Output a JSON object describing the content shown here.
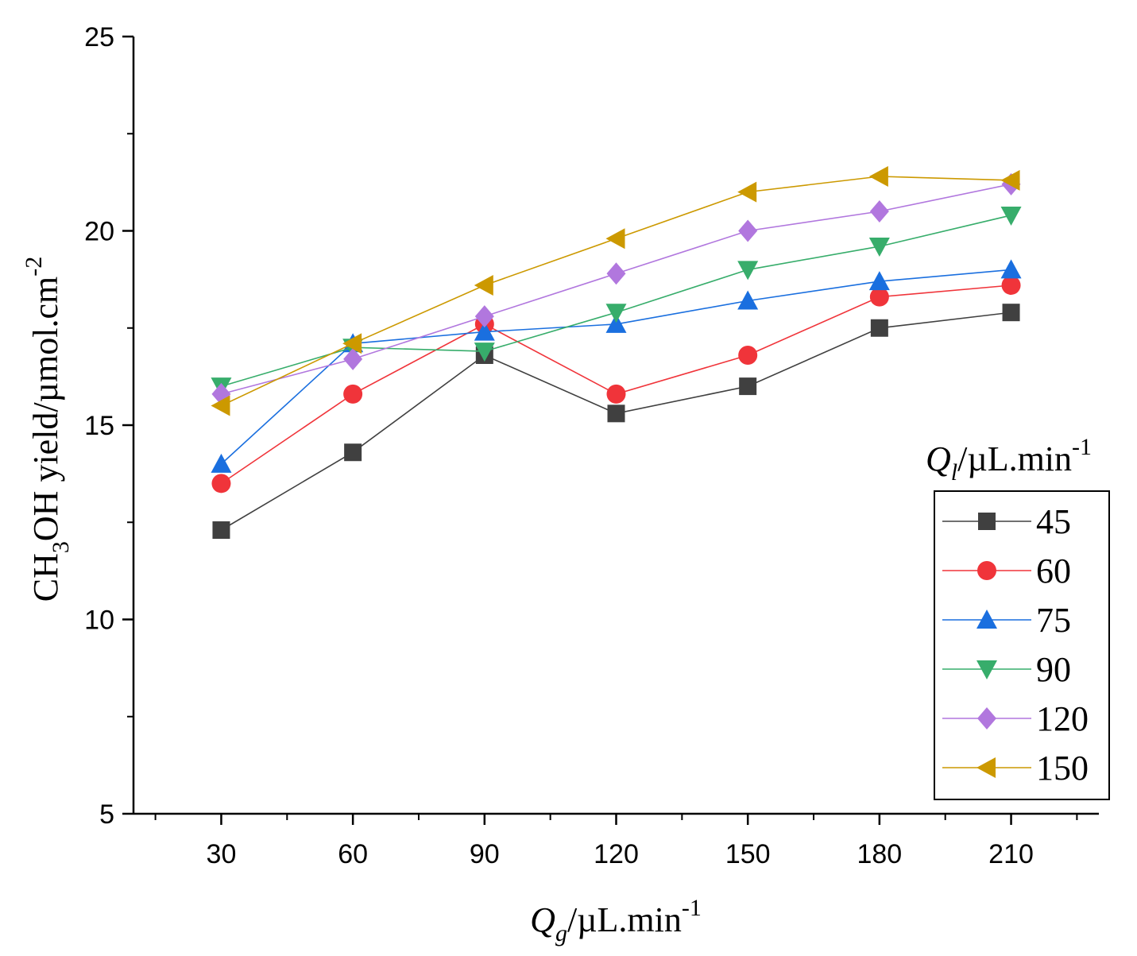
{
  "chart_data": {
    "type": "line",
    "x": [
      30,
      60,
      90,
      120,
      150,
      180,
      210
    ],
    "xlim": [
      10,
      230
    ],
    "ylim": [
      5,
      25
    ],
    "xticks": [
      "30",
      "60",
      "90",
      "120",
      "150",
      "180",
      "210"
    ],
    "yticks": [
      "5",
      "10",
      "15",
      "20",
      "25"
    ],
    "xlabel": {
      "var": "Q",
      "sub": "g",
      "unit": "/µL.min",
      "sup": "-1"
    },
    "ylabel": {
      "pre": "CH",
      "sub": "3",
      "mid": "OH yield/µmol.cm",
      "sup": "-2"
    },
    "legend_title": {
      "var": "Q",
      "sub": "l",
      "unit": "/µL.min",
      "sup": "-1"
    },
    "legend_position": "right",
    "grid": false,
    "series": [
      {
        "name": "45",
        "color": "#404040",
        "marker": "square",
        "values": [
          12.3,
          14.3,
          16.8,
          15.3,
          16.0,
          17.5,
          17.9
        ]
      },
      {
        "name": "60",
        "color": "#f0343a",
        "marker": "circle",
        "values": [
          13.5,
          15.8,
          17.6,
          15.8,
          16.8,
          18.3,
          18.6
        ]
      },
      {
        "name": "75",
        "color": "#1a6fdf",
        "marker": "triangle-up",
        "values": [
          14.0,
          17.1,
          17.4,
          17.6,
          18.2,
          18.7,
          19.0
        ]
      },
      {
        "name": "90",
        "color": "#37ad6b",
        "marker": "triangle-down",
        "values": [
          16.0,
          17.0,
          16.9,
          17.9,
          19.0,
          19.6,
          20.4
        ]
      },
      {
        "name": "120",
        "color": "#b177de",
        "marker": "diamond",
        "values": [
          15.8,
          16.7,
          17.8,
          18.9,
          20.0,
          20.5,
          21.2
        ]
      },
      {
        "name": "150",
        "color": "#cc9900",
        "marker": "triangle-left",
        "values": [
          15.5,
          17.1,
          18.6,
          19.8,
          21.0,
          21.4,
          21.3
        ]
      }
    ]
  }
}
